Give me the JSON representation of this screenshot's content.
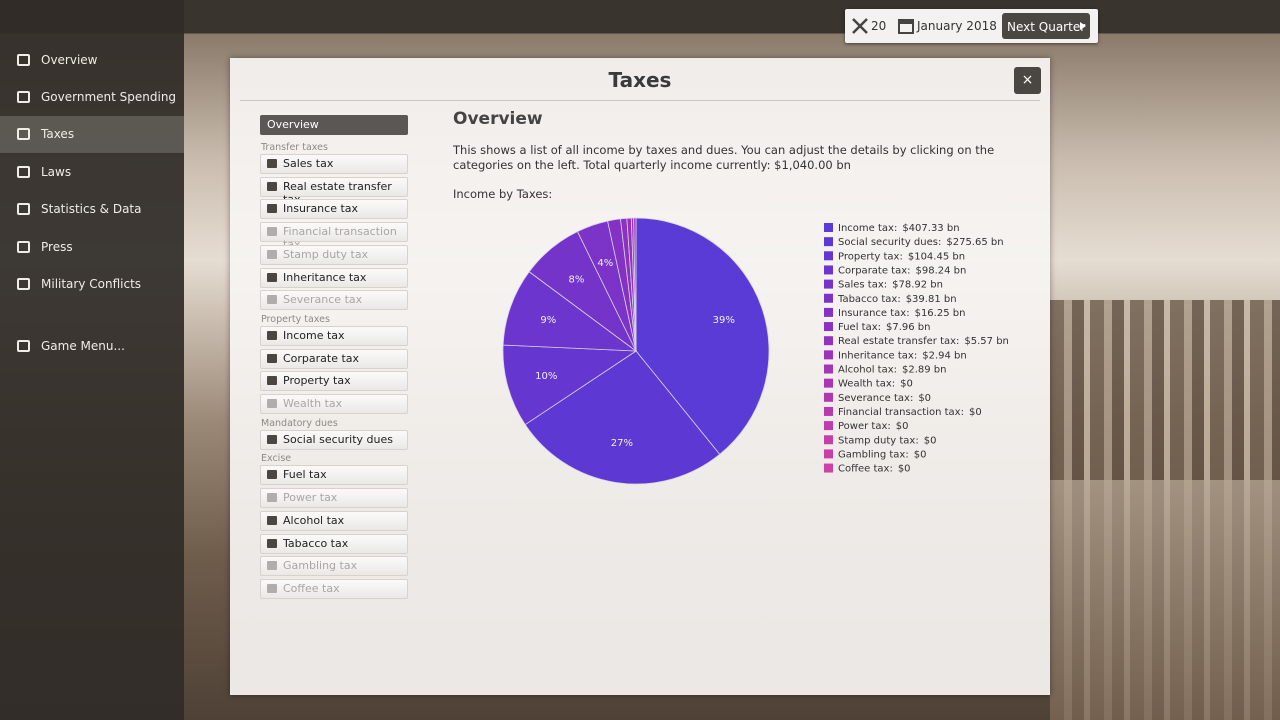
{
  "topbar": {
    "workers": "20",
    "date": "January 2018",
    "next_button": "Next Quarter"
  },
  "sidebar": [
    "Overview",
    "Government Spending",
    "Taxes",
    "Laws",
    "Statistics & Data",
    "Press",
    "Military Conflicts",
    "Game Menu..."
  ],
  "dialog": {
    "title": "Taxes",
    "close": "×",
    "menu": {
      "overview": "Overview",
      "groups": [
        {
          "heading": "Transfer taxes",
          "items": [
            {
              "label": "Sales tax",
              "disabled": false
            },
            {
              "label": "Real estate transfer tax",
              "disabled": false
            },
            {
              "label": "Insurance tax",
              "disabled": false
            },
            {
              "label": "Financial transaction tax",
              "disabled": true
            },
            {
              "label": "Stamp duty tax",
              "disabled": true
            },
            {
              "label": "Inheritance tax",
              "disabled": false
            },
            {
              "label": "Severance tax",
              "disabled": true
            }
          ]
        },
        {
          "heading": "Property taxes",
          "items": [
            {
              "label": "Income tax",
              "disabled": false
            },
            {
              "label": "Corparate tax",
              "disabled": false
            },
            {
              "label": "Property tax",
              "disabled": false
            },
            {
              "label": "Wealth tax",
              "disabled": true
            }
          ]
        },
        {
          "heading": "Mandatory dues",
          "items": [
            {
              "label": "Social security dues",
              "disabled": false
            }
          ]
        },
        {
          "heading": "Excise",
          "items": [
            {
              "label": "Fuel tax",
              "disabled": false
            },
            {
              "label": "Power tax",
              "disabled": true
            },
            {
              "label": "Alcohol tax",
              "disabled": false
            },
            {
              "label": "Tabacco tax",
              "disabled": false
            },
            {
              "label": "Gambling tax",
              "disabled": true
            },
            {
              "label": "Coffee tax",
              "disabled": true
            }
          ]
        }
      ]
    },
    "heading": "Overview",
    "description": "This shows a list of all income by taxes and dues. You can adjust the details by clicking on the categories on the left. Total quarterly income currently:  $1,040.00 bn",
    "chart_title": "Income by Taxes:"
  },
  "chart_data": {
    "type": "pie",
    "categories": [
      "Income tax:",
      "Social security dues:",
      "Property tax:",
      "Corparate tax:",
      "Sales tax:",
      "Tabacco tax:",
      "Insurance tax:",
      "Fuel tax:",
      "Real estate transfer tax:",
      "Inheritance tax:",
      "Alcohol tax:",
      "Wealth tax:",
      "Severance tax:",
      "Financial transaction tax:",
      "Power tax:",
      "Stamp duty tax:",
      "Gambling tax:",
      "Coffee tax:"
    ],
    "values": [
      407.33,
      275.65,
      104.45,
      98.24,
      78.92,
      39.81,
      16.25,
      7.96,
      5.57,
      2.94,
      2.89,
      0,
      0,
      0,
      0,
      0,
      0,
      0
    ],
    "value_labels": [
      "$407.33 bn",
      "$275.65 bn",
      "$104.45 bn",
      "$98.24 bn",
      "$78.92 bn",
      "$39.81 bn",
      "$16.25 bn",
      "$7.96 bn",
      "$5.57 bn",
      "$2.94 bn",
      "$2.89 bn",
      "$0",
      "$0",
      "$0",
      "$0",
      "$0",
      "$0",
      "$0"
    ],
    "percent_labels": [
      {
        "value": 39,
        "label": "39%"
      },
      {
        "value": 27,
        "label": "27%"
      },
      {
        "value": 10,
        "label": "10%"
      },
      {
        "value": 9,
        "label": "9%"
      },
      {
        "value": 8,
        "label": "8%"
      },
      {
        "value": 4,
        "label": "4%"
      },
      null,
      null,
      null,
      null,
      null,
      null,
      null,
      null,
      null,
      null,
      null,
      null
    ],
    "colors": [
      "#5b3bd6",
      "#5e38d2",
      "#6536d0",
      "#6c35cd",
      "#7434ca",
      "#7c33c7",
      "#8432c4",
      "#8c32c1",
      "#9432be",
      "#9c33bb",
      "#a434b8",
      "#ab36b5",
      "#b238b2",
      "#b83aaf",
      "#be3cac",
      "#c33ea9",
      "#c840a6",
      "#cc43a3"
    ]
  }
}
